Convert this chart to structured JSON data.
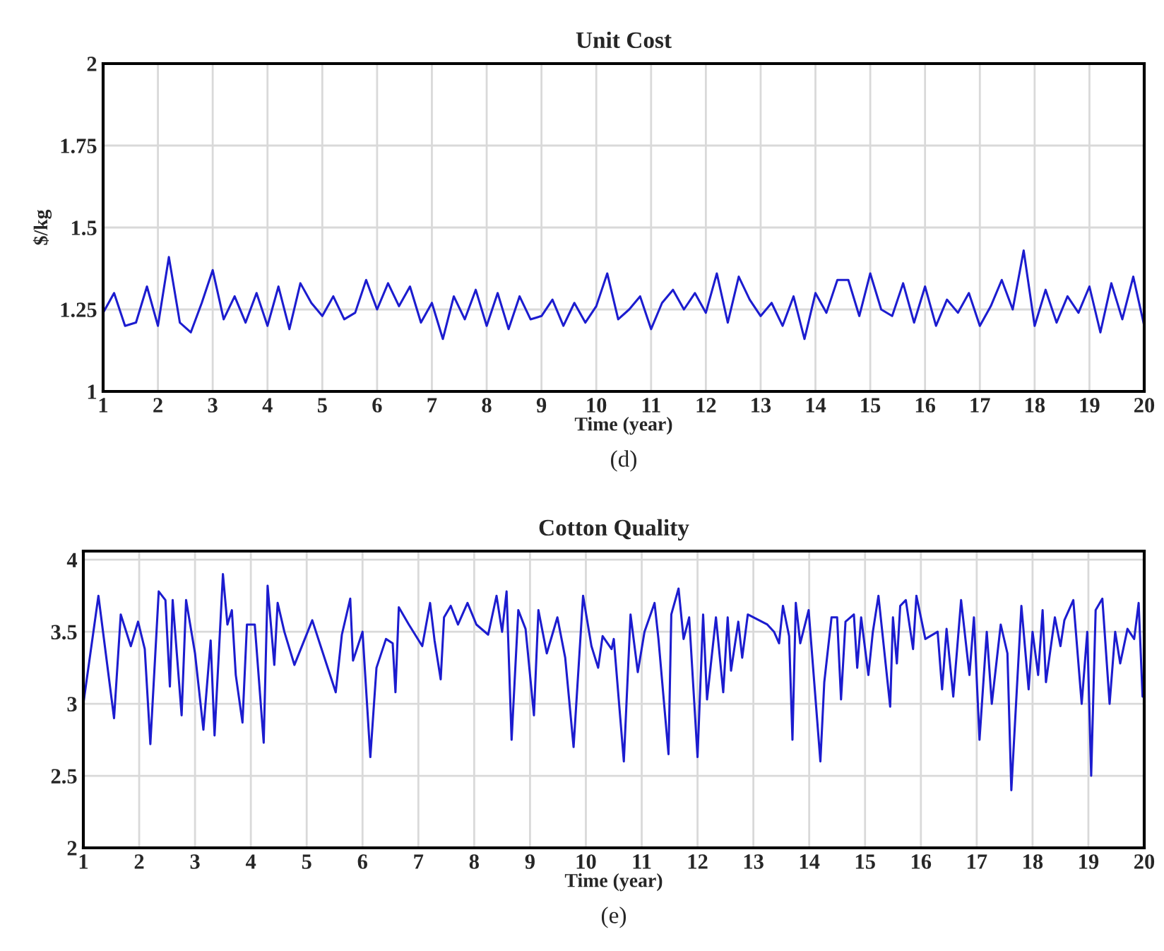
{
  "chart_data": [
    {
      "type": "line",
      "title": "Unit Cost",
      "xlabel": "Time (year)",
      "ylabel": "$/kg",
      "annotations": [
        "(d)"
      ],
      "xlim": [
        1,
        20
      ],
      "ylim": [
        1,
        2
      ],
      "xticks": [
        1,
        2,
        3,
        4,
        5,
        6,
        7,
        8,
        9,
        10,
        11,
        12,
        13,
        14,
        15,
        16,
        17,
        18,
        19,
        20
      ],
      "yticks": [
        1,
        1.25,
        1.5,
        1.75,
        2
      ],
      "grid": true,
      "line_style": "solid",
      "x": [
        1.0,
        1.2,
        1.4,
        1.6,
        1.8,
        2.0,
        2.2,
        2.4,
        2.6,
        2.8,
        3.0,
        3.2,
        3.4,
        3.6,
        3.8,
        4.0,
        4.2,
        4.4,
        4.6,
        4.8,
        5.0,
        5.2,
        5.4,
        5.6,
        5.8,
        6.0,
        6.2,
        6.4,
        6.6,
        6.8,
        7.0,
        7.2,
        7.4,
        7.6,
        7.8,
        8.0,
        8.2,
        8.4,
        8.6,
        8.8,
        9.0,
        9.2,
        9.4,
        9.6,
        9.8,
        10.0,
        10.2,
        10.4,
        10.6,
        10.8,
        11.0,
        11.2,
        11.4,
        11.6,
        11.8,
        12.0,
        12.2,
        12.4,
        12.6,
        12.8,
        13.0,
        13.2,
        13.4,
        13.6,
        13.8,
        14.0,
        14.2,
        14.4,
        14.6,
        14.8,
        15.0,
        15.2,
        15.4,
        15.6,
        15.8,
        16.0,
        16.2,
        16.4,
        16.6,
        16.8,
        17.0,
        17.2,
        17.4,
        17.6,
        17.8,
        18.0,
        18.2,
        18.4,
        18.6,
        18.8,
        19.0,
        19.2,
        19.4,
        19.6,
        19.8,
        20.0
      ],
      "series": [
        {
          "color": "#1c1ccf",
          "values": [
            1.24,
            1.3,
            1.2,
            1.21,
            1.32,
            1.2,
            1.41,
            1.21,
            1.18,
            1.27,
            1.37,
            1.22,
            1.29,
            1.21,
            1.3,
            1.2,
            1.32,
            1.19,
            1.33,
            1.27,
            1.23,
            1.29,
            1.22,
            1.24,
            1.34,
            1.25,
            1.33,
            1.26,
            1.32,
            1.21,
            1.27,
            1.16,
            1.29,
            1.22,
            1.31,
            1.2,
            1.3,
            1.19,
            1.29,
            1.22,
            1.23,
            1.28,
            1.2,
            1.27,
            1.21,
            1.26,
            1.36,
            1.22,
            1.25,
            1.29,
            1.19,
            1.27,
            1.31,
            1.25,
            1.3,
            1.24,
            1.36,
            1.21,
            1.35,
            1.28,
            1.23,
            1.27,
            1.2,
            1.29,
            1.16,
            1.3,
            1.24,
            1.34,
            1.34,
            1.23,
            1.36,
            1.25,
            1.23,
            1.33,
            1.21,
            1.32,
            1.2,
            1.28,
            1.24,
            1.3,
            1.2,
            1.26,
            1.34,
            1.25,
            1.43,
            1.2,
            1.31,
            1.21,
            1.29,
            1.24,
            1.32,
            1.18,
            1.33,
            1.22,
            1.35,
            1.2
          ]
        }
      ]
    },
    {
      "type": "line",
      "title": "Cotton Quality",
      "xlabel": "Time (year)",
      "annotations": [
        "(e)"
      ],
      "xlim": [
        1,
        20
      ],
      "ylim": [
        2,
        4.06
      ],
      "xticks": [
        1,
        2,
        3,
        4,
        5,
        6,
        7,
        8,
        9,
        10,
        11,
        12,
        13,
        14,
        15,
        16,
        17,
        18,
        19,
        20
      ],
      "yticks": [
        2,
        2.5,
        3,
        3.5,
        4
      ],
      "grid": true,
      "line_style": "solid",
      "x": [
        1.0,
        1.27,
        1.55,
        1.67,
        1.85,
        1.98,
        2.1,
        2.2,
        2.35,
        2.47,
        2.55,
        2.6,
        2.76,
        2.84,
        3.0,
        3.15,
        3.28,
        3.35,
        3.5,
        3.58,
        3.66,
        3.73,
        3.85,
        3.93,
        4.07,
        4.23,
        4.3,
        4.42,
        4.48,
        4.6,
        4.78,
        5.1,
        5.25,
        5.52,
        5.63,
        5.78,
        5.83,
        6.0,
        6.14,
        6.25,
        6.42,
        6.54,
        6.59,
        6.65,
        6.83,
        7.07,
        7.21,
        7.29,
        7.4,
        7.46,
        7.58,
        7.71,
        7.88,
        8.04,
        8.25,
        8.4,
        8.5,
        8.58,
        8.67,
        8.79,
        8.92,
        9.07,
        9.15,
        9.3,
        9.49,
        9.63,
        9.78,
        9.95,
        10.1,
        10.22,
        10.3,
        10.46,
        10.5,
        10.68,
        10.8,
        10.93,
        11.05,
        11.23,
        11.3,
        11.48,
        11.53,
        11.66,
        11.75,
        11.85,
        12.0,
        12.1,
        12.17,
        12.33,
        12.46,
        12.54,
        12.6,
        12.73,
        12.8,
        12.9,
        13.25,
        13.37,
        13.46,
        13.53,
        13.64,
        13.7,
        13.76,
        13.84,
        13.99,
        14.2,
        14.27,
        14.4,
        14.5,
        14.57,
        14.65,
        14.8,
        14.86,
        14.93,
        15.06,
        15.14,
        15.24,
        15.45,
        15.5,
        15.57,
        15.63,
        15.73,
        15.86,
        15.92,
        16.08,
        16.3,
        16.38,
        16.46,
        16.58,
        16.72,
        16.87,
        16.95,
        17.05,
        17.18,
        17.27,
        17.43,
        17.55,
        17.62,
        17.8,
        17.93,
        18.0,
        18.1,
        18.18,
        18.24,
        18.4,
        18.5,
        18.57,
        18.73,
        18.88,
        18.98,
        19.05,
        19.13,
        19.25,
        19.38,
        19.48,
        19.57,
        19.7,
        19.82,
        19.9,
        19.97
      ],
      "series": [
        {
          "color": "#1c1ccf",
          "values": [
            3.0,
            3.75,
            2.9,
            3.62,
            3.4,
            3.57,
            3.38,
            2.72,
            3.78,
            3.72,
            3.12,
            3.72,
            2.92,
            3.72,
            3.35,
            2.82,
            3.44,
            2.78,
            3.9,
            3.55,
            3.65,
            3.2,
            2.87,
            3.55,
            3.55,
            2.73,
            3.82,
            3.27,
            3.7,
            3.5,
            3.27,
            3.58,
            3.4,
            3.08,
            3.48,
            3.73,
            3.3,
            3.5,
            2.63,
            3.25,
            3.45,
            3.42,
            3.08,
            3.67,
            3.55,
            3.4,
            3.7,
            3.44,
            3.17,
            3.6,
            3.68,
            3.55,
            3.7,
            3.55,
            3.48,
            3.75,
            3.5,
            3.78,
            2.75,
            3.65,
            3.52,
            2.92,
            3.65,
            3.35,
            3.6,
            3.32,
            2.7,
            3.75,
            3.4,
            3.25,
            3.47,
            3.38,
            3.45,
            2.6,
            3.62,
            3.22,
            3.5,
            3.7,
            3.45,
            2.65,
            3.62,
            3.8,
            3.45,
            3.6,
            2.63,
            3.62,
            3.03,
            3.6,
            3.08,
            3.6,
            3.23,
            3.57,
            3.32,
            3.62,
            3.55,
            3.5,
            3.42,
            3.68,
            3.47,
            2.75,
            3.7,
            3.42,
            3.65,
            2.6,
            3.15,
            3.6,
            3.6,
            3.03,
            3.57,
            3.62,
            3.25,
            3.6,
            3.2,
            3.5,
            3.75,
            2.98,
            3.6,
            3.28,
            3.68,
            3.72,
            3.38,
            3.75,
            3.45,
            3.5,
            3.1,
            3.52,
            3.05,
            3.72,
            3.2,
            3.6,
            2.75,
            3.5,
            3.0,
            3.55,
            3.35,
            2.4,
            3.68,
            3.1,
            3.5,
            3.2,
            3.65,
            3.15,
            3.6,
            3.4,
            3.58,
            3.72,
            3.0,
            3.5,
            2.5,
            3.65,
            3.73,
            3.0,
            3.5,
            3.28,
            3.52,
            3.45,
            3.7,
            3.05
          ]
        }
      ]
    }
  ]
}
